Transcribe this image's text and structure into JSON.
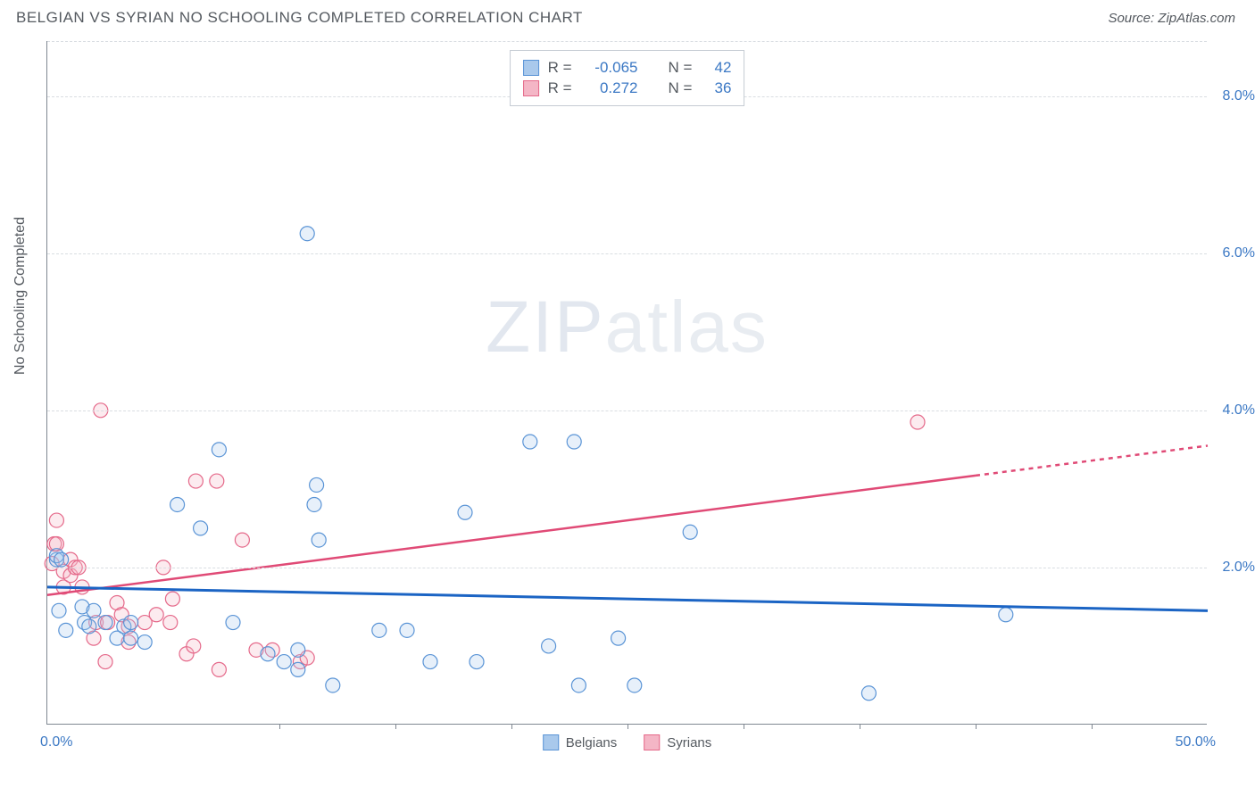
{
  "header": {
    "title": "BELGIAN VS SYRIAN NO SCHOOLING COMPLETED CORRELATION CHART",
    "source": "Source: ZipAtlas.com"
  },
  "watermark": {
    "bold": "ZIP",
    "rest": "atlas"
  },
  "chart": {
    "type": "scatter",
    "ylabel": "No Schooling Completed",
    "xlim": [
      0,
      50
    ],
    "ylim": [
      0,
      8.7
    ],
    "x_axis_labels": {
      "start": "0.0%",
      "end": "50.0%"
    },
    "x_minor_ticks_pct": [
      10,
      15,
      20,
      25,
      30,
      35,
      40,
      45
    ],
    "y_ticks": [
      {
        "v": 2.0,
        "label": "2.0%"
      },
      {
        "v": 4.0,
        "label": "4.0%"
      },
      {
        "v": 6.0,
        "label": "6.0%"
      },
      {
        "v": 8.0,
        "label": "8.0%"
      }
    ],
    "grid_y": [
      2,
      4,
      6,
      8,
      8.7
    ],
    "background_color": "#ffffff",
    "grid_color": "#d9dde2",
    "series": {
      "belgians": {
        "label": "Belgians",
        "color": "#5a94d6",
        "fill": "#a9c9ec",
        "radius": 8,
        "R": "-0.065",
        "N": "42",
        "trend": {
          "y_at_x0": 1.75,
          "y_at_x50": 1.45,
          "color": "#1b64c4",
          "width": 3,
          "solid_until_x": 50
        },
        "points": [
          [
            0.4,
            2.1
          ],
          [
            0.4,
            2.15
          ],
          [
            0.6,
            2.1
          ],
          [
            0.5,
            1.45
          ],
          [
            0.8,
            1.2
          ],
          [
            1.5,
            1.5
          ],
          [
            1.6,
            1.3
          ],
          [
            1.8,
            1.25
          ],
          [
            2.0,
            1.45
          ],
          [
            2.5,
            1.3
          ],
          [
            3.0,
            1.1
          ],
          [
            3.3,
            1.25
          ],
          [
            3.6,
            1.3
          ],
          [
            3.6,
            1.1
          ],
          [
            4.2,
            1.05
          ],
          [
            5.6,
            2.8
          ],
          [
            6.6,
            2.5
          ],
          [
            7.4,
            3.5
          ],
          [
            8.0,
            1.3
          ],
          [
            9.5,
            0.9
          ],
          [
            10.2,
            0.8
          ],
          [
            10.8,
            0.95
          ],
          [
            10.8,
            0.7
          ],
          [
            11.5,
            2.8
          ],
          [
            11.6,
            3.05
          ],
          [
            11.7,
            2.35
          ],
          [
            12.3,
            0.5
          ],
          [
            14.3,
            1.2
          ],
          [
            15.5,
            1.2
          ],
          [
            16.5,
            0.8
          ],
          [
            18.0,
            2.7
          ],
          [
            18.5,
            0.8
          ],
          [
            20.8,
            3.6
          ],
          [
            21.6,
            1.0
          ],
          [
            22.7,
            3.6
          ],
          [
            22.9,
            0.5
          ],
          [
            24.6,
            1.1
          ],
          [
            25.3,
            0.5
          ],
          [
            27.7,
            2.45
          ],
          [
            35.4,
            0.4
          ],
          [
            41.3,
            1.4
          ],
          [
            11.2,
            6.25
          ]
        ]
      },
      "syrians": {
        "label": "Syrians",
        "color": "#e5698a",
        "fill": "#f4b6c6",
        "radius": 8,
        "R": "0.272",
        "N": "36",
        "trend": {
          "y_at_x0": 1.65,
          "y_at_x50": 3.55,
          "color": "#e04a76",
          "width": 2.5,
          "solid_until_x": 40
        },
        "points": [
          [
            0.2,
            2.05
          ],
          [
            0.3,
            2.3
          ],
          [
            0.4,
            2.3
          ],
          [
            0.4,
            2.6
          ],
          [
            0.7,
            1.95
          ],
          [
            0.7,
            1.75
          ],
          [
            1.0,
            2.1
          ],
          [
            1.0,
            1.9
          ],
          [
            1.2,
            2.0
          ],
          [
            1.35,
            2.0
          ],
          [
            1.5,
            1.75
          ],
          [
            2.1,
            1.3
          ],
          [
            2.0,
            1.1
          ],
          [
            2.5,
            0.8
          ],
          [
            2.6,
            1.3
          ],
          [
            3.0,
            1.55
          ],
          [
            3.2,
            1.4
          ],
          [
            3.5,
            1.25
          ],
          [
            3.5,
            1.05
          ],
          [
            4.2,
            1.3
          ],
          [
            4.7,
            1.4
          ],
          [
            5.0,
            2.0
          ],
          [
            5.3,
            1.3
          ],
          [
            5.4,
            1.6
          ],
          [
            6.0,
            0.9
          ],
          [
            6.3,
            1.0
          ],
          [
            6.4,
            3.1
          ],
          [
            7.3,
            3.1
          ],
          [
            7.4,
            0.7
          ],
          [
            8.4,
            2.35
          ],
          [
            9.0,
            0.95
          ],
          [
            9.7,
            0.95
          ],
          [
            10.9,
            0.8
          ],
          [
            11.2,
            0.85
          ],
          [
            2.3,
            4.0
          ],
          [
            37.5,
            3.85
          ]
        ]
      }
    },
    "bottom_legend": [
      "belgians",
      "syrians"
    ]
  }
}
